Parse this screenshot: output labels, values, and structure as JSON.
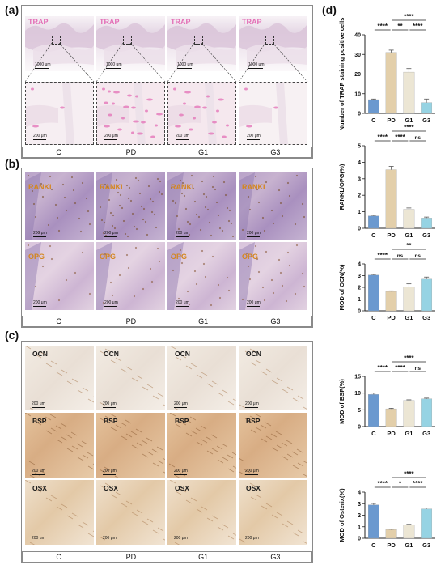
{
  "panel_labels": {
    "a": "(a)",
    "b": "(b)",
    "c": "(c)",
    "d": "(d)"
  },
  "groups": [
    "C",
    "PD",
    "G1",
    "G3"
  ],
  "panel_a": {
    "stain": "TRAP",
    "overview_scale": "1000 μm",
    "zoom_scale": "200 μm"
  },
  "panel_b": {
    "rows": [
      {
        "stain": "RANKL",
        "scale": "200 μm"
      },
      {
        "stain": "OPG",
        "scale": "200 μm"
      }
    ]
  },
  "panel_c": {
    "rows": [
      {
        "stain": "OCN",
        "scale": "200 μm"
      },
      {
        "stain": "BSP",
        "scale": "200 μm"
      },
      {
        "stain": "OSX",
        "scale": "200 μm"
      }
    ]
  },
  "colors": {
    "C": "#6b99cf",
    "PD": "#e3cfaa",
    "G1": "#ece6d4",
    "G3": "#96d3e3",
    "trap_pink": "#e36fb6",
    "rankl_orange": "#d4861e"
  },
  "chart_data": [
    {
      "type": "bar",
      "ylabel": "Number of TRAP staining positive cells",
      "categories": [
        "C",
        "PD",
        "G1",
        "G3"
      ],
      "values": [
        7,
        31,
        21,
        5.5
      ],
      "errors": [
        0.3,
        1.2,
        1.8,
        1.8
      ],
      "ylim": [
        0,
        40
      ],
      "ticks": [
        "0",
        "10",
        "20",
        "30",
        "40"
      ],
      "sig": [
        {
          "from": 0,
          "to": 1,
          "label": "****",
          "level": 0
        },
        {
          "from": 1,
          "to": 2,
          "label": "**",
          "level": 0
        },
        {
          "from": 2,
          "to": 3,
          "label": "****",
          "level": 0
        },
        {
          "from": 1,
          "to": 3,
          "label": "****",
          "level": 1
        }
      ]
    },
    {
      "type": "bar",
      "ylabel": "RANKL/OPG(%)",
      "categories": [
        "C",
        "PD",
        "G1",
        "G3"
      ],
      "values": [
        0.75,
        3.55,
        1.15,
        0.62
      ],
      "errors": [
        0.04,
        0.2,
        0.08,
        0.06
      ],
      "ylim": [
        0,
        5
      ],
      "ticks": [
        "0",
        "1",
        "2",
        "3",
        "4",
        "5"
      ],
      "sig": [
        {
          "from": 0,
          "to": 1,
          "label": "****",
          "level": 0
        },
        {
          "from": 1,
          "to": 2,
          "label": "****",
          "level": 0
        },
        {
          "from": 2,
          "to": 3,
          "label": "ns",
          "level": 0
        },
        {
          "from": 1,
          "to": 3,
          "label": "****",
          "level": 1
        }
      ]
    },
    {
      "type": "bar",
      "ylabel": "MOD of OCN(%)",
      "categories": [
        "C",
        "PD",
        "G1",
        "G3"
      ],
      "values": [
        3.05,
        1.65,
        2.05,
        2.7
      ],
      "errors": [
        0.06,
        0.05,
        0.25,
        0.18
      ],
      "ylim": [
        0,
        4
      ],
      "ticks": [
        "0",
        "1",
        "2",
        "3",
        "4"
      ],
      "sig": [
        {
          "from": 0,
          "to": 1,
          "label": "****",
          "level": 0
        },
        {
          "from": 1,
          "to": 2,
          "label": "ns",
          "level": 0
        },
        {
          "from": 2,
          "to": 3,
          "label": "ns",
          "level": 0
        },
        {
          "from": 1,
          "to": 3,
          "label": "**",
          "level": 1
        }
      ]
    },
    {
      "type": "bar",
      "ylabel": "MOD of BSP(%)",
      "categories": [
        "C",
        "PD",
        "G1",
        "G3"
      ],
      "values": [
        9.6,
        5.3,
        7.8,
        8.3
      ],
      "errors": [
        0.4,
        0.15,
        0.2,
        0.2
      ],
      "ylim": [
        0,
        15
      ],
      "ticks": [
        "0",
        "5",
        "10",
        "15"
      ],
      "sig": [
        {
          "from": 0,
          "to": 1,
          "label": "****",
          "level": 0
        },
        {
          "from": 1,
          "to": 2,
          "label": "****",
          "level": 0
        },
        {
          "from": 2,
          "to": 3,
          "label": "ns",
          "level": 0
        },
        {
          "from": 1,
          "to": 3,
          "label": "****",
          "level": 1
        }
      ]
    },
    {
      "type": "bar",
      "ylabel": "MOD of Osterix(%)",
      "categories": [
        "C",
        "PD",
        "G1",
        "G3"
      ],
      "values": [
        2.9,
        0.75,
        1.15,
        2.55
      ],
      "errors": [
        0.12,
        0.04,
        0.06,
        0.08
      ],
      "ylim": [
        0,
        4
      ],
      "ticks": [
        "0",
        "1",
        "2",
        "3",
        "4"
      ],
      "sig": [
        {
          "from": 0,
          "to": 1,
          "label": "****",
          "level": 0
        },
        {
          "from": 1,
          "to": 2,
          "label": "*",
          "level": 0
        },
        {
          "from": 2,
          "to": 3,
          "label": "****",
          "level": 0
        },
        {
          "from": 1,
          "to": 3,
          "label": "****",
          "level": 1
        }
      ]
    }
  ]
}
